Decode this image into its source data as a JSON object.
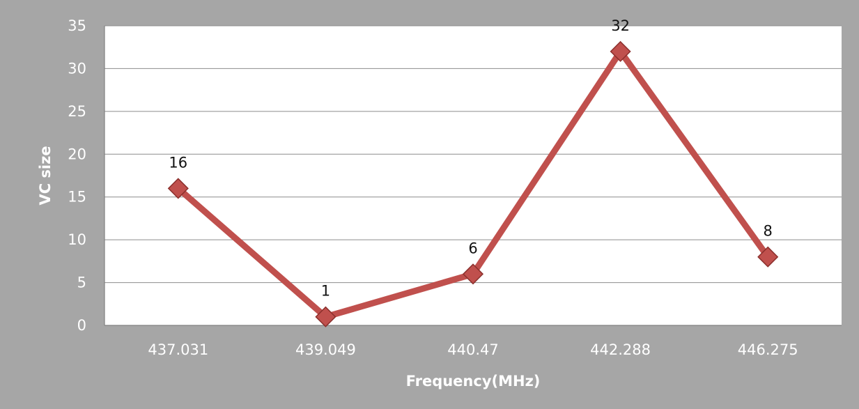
{
  "chart_data": {
    "type": "line",
    "title": "",
    "xlabel": "Frequency(MHz)",
    "ylabel": "VC size",
    "categories": [
      "437.031",
      "439.049",
      "440.47",
      "442.288",
      "446.275"
    ],
    "series": [
      {
        "values": [
          16,
          1,
          6,
          32,
          8
        ]
      }
    ],
    "data_labels": [
      "16",
      "1",
      "6",
      "32",
      "8"
    ],
    "ylim": [
      0,
      35
    ],
    "yticks": [
      0,
      5,
      10,
      15,
      20,
      25,
      30,
      35
    ],
    "ytick_labels": [
      "0",
      "5",
      "10",
      "15",
      "20",
      "25",
      "30",
      "35"
    ],
    "grid": "horizontal",
    "legend": "none",
    "marker": "diamond",
    "colors": {
      "background": "#a6a6a6",
      "plot_area": "#ffffff",
      "gridline": "#8c8c8c",
      "line": "#c0504d",
      "marker_fill": "#c0504d",
      "marker_stroke": "#8b2f2c",
      "tick_text": "#ffffff",
      "data_label_text": "#111111"
    }
  }
}
